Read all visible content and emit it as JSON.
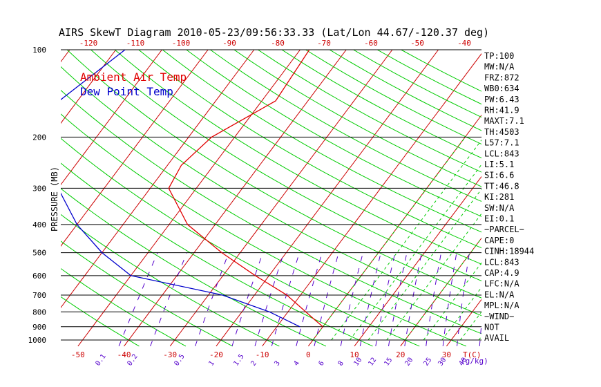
{
  "title": "AIRS SkewT Diagram 2010-05-23/09:56:33.33 (Lat/Lon 44.67/-120.37 deg)",
  "legend": {
    "ambient": "Ambient Air Temp",
    "dew": "Dew Point Temp"
  },
  "colors": {
    "ambient": "#e00000",
    "dew": "#0000cc",
    "dry_adiabat": "#00cc00",
    "isotherm": "#cc0000",
    "mixing_ratio": "#5500cc",
    "moist_adiabat": "#00cc00"
  },
  "chart_data": {
    "type": "line",
    "title": "AIRS SkewT Diagram 2010-05-23/09:56:33.33 (Lat/Lon 44.67/-120.37 deg)",
    "ylabel": "PRESSURE (MB)",
    "xlabel": "T(C)",
    "y_scale": "log",
    "y_ticks": [
      100,
      200,
      300,
      400,
      500,
      600,
      700,
      800,
      900,
      1000
    ],
    "x_ticks_bottom": [
      -50,
      -40,
      -30,
      -20,
      -10,
      0,
      10,
      20,
      30
    ],
    "x_ticks_top": [
      -120,
      -110,
      -100,
      -90,
      -80,
      -70,
      -60,
      -50,
      -40
    ],
    "mixing_ratio_labels": [
      "0.1",
      "0.2",
      "0.5",
      "1",
      "1.5",
      "2",
      "3",
      "4",
      "6",
      "8",
      "10",
      "12",
      "15",
      "20",
      "25",
      "30",
      "40"
    ],
    "mixing_ratio_unit": "(g/kg)",
    "series": [
      {
        "name": "Ambient Air Temp",
        "points": [
          [
            100,
            -48
          ],
          [
            150,
            -47
          ],
          [
            200,
            -55
          ],
          [
            250,
            -57
          ],
          [
            300,
            -56
          ],
          [
            400,
            -46
          ],
          [
            500,
            -34
          ],
          [
            600,
            -23
          ],
          [
            700,
            -13
          ],
          [
            850,
            -3
          ],
          [
            900,
            0
          ]
        ]
      },
      {
        "name": "Dew Point Temp",
        "points": [
          [
            100,
            -88
          ],
          [
            150,
            -94
          ],
          [
            200,
            -94
          ],
          [
            250,
            -88
          ],
          [
            300,
            -80
          ],
          [
            400,
            -70
          ],
          [
            500,
            -60
          ],
          [
            600,
            -50
          ],
          [
            700,
            -27
          ],
          [
            800,
            -14
          ],
          [
            900,
            -5
          ]
        ]
      }
    ]
  },
  "indices": [
    "TP:100",
    "MW:N/A",
    "FRZ:872",
    "WB0:634",
    "PW:6.43",
    "RH:41.9",
    "MAXT:7.1",
    "TH:4503",
    "L57:7.1",
    "LCL:843",
    "LI:5.1",
    "SI:6.6",
    "TT:46.8",
    "KI:281",
    "SW:N/A",
    "EI:0.1",
    "−PARCEL−",
    "CAPE:0",
    "CINH:18944",
    "LCL:843",
    "CAP:4.9",
    "LFC:N/A",
    "EL:N/A",
    "MPL:N/A",
    "−WIND−",
    "NOT",
    "AVAIL"
  ]
}
